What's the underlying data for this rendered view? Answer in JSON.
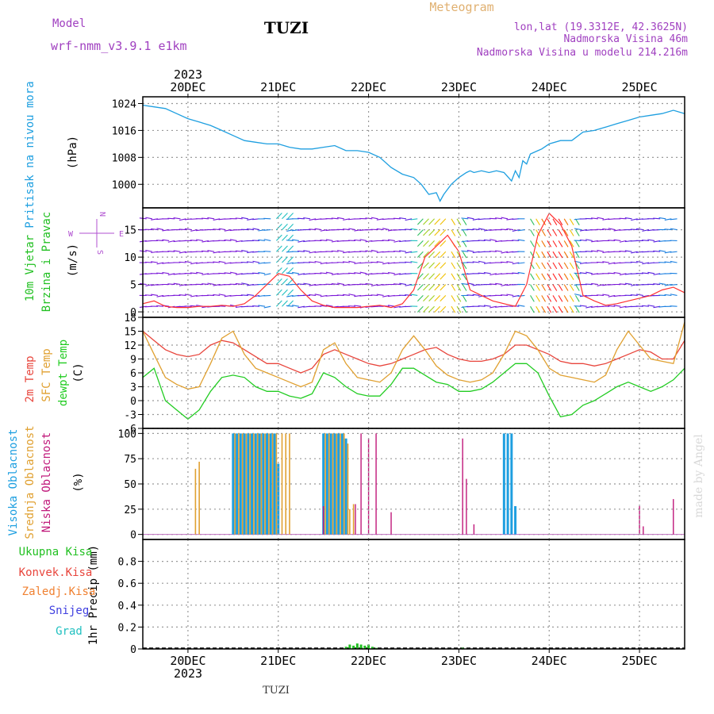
{
  "header": {
    "model_label": "Model",
    "model_name": "wrf-nmm_v3.9.1 e1km",
    "station": "TUZI",
    "product": "Meteogram",
    "lonlat": "lon,lat (19.3312E, 42.3625N)",
    "elevation": "Nadmorska Visina 46m",
    "model_elevation": "Nadmorska Visina u modelu 214.216m",
    "year_top": "2023",
    "year_bottom": "2023",
    "footer_station": "TUZI",
    "watermark": "made by Angel"
  },
  "colors": {
    "pressure": "#1e9fe0",
    "wind_label": "#22c022",
    "wind_speed": "#ff3030",
    "temp2m": "#e8453c",
    "sfc": "#e0a030",
    "dewpt": "#22cc22",
    "high_cloud": "#1e9fe0",
    "mid_cloud": "#e0a030",
    "low_cloud": "#c0187a",
    "total_precip": "#22c022",
    "conv_precip": "#e8453c",
    "frozen_precip": "#f08030",
    "snow": "#4040e0",
    "graupel": "#20c0c0",
    "compass": "#b050d0",
    "header_purple": "#a040c0",
    "meteogram_title": "#e0b070"
  },
  "x_axis": {
    "days": [
      "20DEC",
      "21DEC",
      "22DEC",
      "23DEC",
      "24DEC",
      "25DEC"
    ],
    "range_hours": [
      -12,
      132
    ]
  },
  "chart_data": [
    {
      "type": "line",
      "panel": "pressure",
      "ylabel_lines": [
        "Pritisak na nivou mora",
        "(hPa)"
      ],
      "yticks": [
        1000,
        1008,
        1016,
        1024
      ],
      "ylim": [
        993,
        1026
      ],
      "series": [
        {
          "x": [
            -12,
            -9,
            -6,
            -3,
            0,
            3,
            6,
            9,
            12,
            15,
            18,
            21,
            24,
            27,
            30,
            33,
            36,
            39,
            42,
            45,
            48,
            51,
            54,
            57,
            60,
            62,
            64,
            66,
            67,
            68,
            70,
            72,
            74,
            75,
            76,
            78,
            80,
            82,
            84,
            86,
            87,
            88,
            89,
            90,
            91,
            92,
            93,
            94,
            96,
            99,
            102,
            105,
            108,
            111,
            114,
            117,
            120,
            123,
            126,
            129,
            132
          ],
          "y": [
            1023.5,
            1023,
            1022.5,
            1021,
            1019.5,
            1018.5,
            1017.5,
            1016,
            1014.5,
            1013,
            1012.5,
            1012,
            1012,
            1011,
            1010.5,
            1010.5,
            1011,
            1011.5,
            1010,
            1010,
            1009.5,
            1008,
            1005,
            1003,
            1002,
            1000,
            997,
            997.5,
            995,
            997,
            1000,
            1002,
            1003.5,
            1004,
            1003.5,
            1004,
            1003.5,
            1004,
            1003.5,
            1001,
            1004,
            1002,
            1007,
            1006,
            1009,
            1009.5,
            1010,
            1010.5,
            1012,
            1013,
            1013,
            1015.5,
            1016,
            1017,
            1018,
            1019,
            1020,
            1020.5,
            1021,
            1022,
            1021
          ]
        }
      ]
    },
    {
      "type": "line",
      "panel": "wind",
      "ylabel_lines": [
        "10m Vjetar",
        "Brzina i Pravac",
        "(m/s)"
      ],
      "yticks": [
        0,
        5,
        10,
        15
      ],
      "ylim": [
        -1,
        19
      ],
      "compass": {
        "n": "N",
        "s": "S",
        "w": "W",
        "e": "E"
      },
      "series": [
        {
          "name": "speed",
          "x": [
            -12,
            -9,
            -6,
            -3,
            0,
            3,
            6,
            9,
            12,
            15,
            18,
            21,
            24,
            27,
            30,
            33,
            36,
            39,
            42,
            45,
            48,
            51,
            54,
            57,
            60,
            63,
            66,
            69,
            72,
            75,
            78,
            81,
            84,
            87,
            90,
            93,
            96,
            99,
            102,
            105,
            108,
            111,
            114,
            117,
            120,
            123,
            126,
            129,
            132
          ],
          "y": [
            1.5,
            2,
            1,
            0.8,
            0.8,
            1,
            1,
            1.2,
            1,
            1.5,
            3,
            5,
            7,
            6.5,
            4,
            2,
            1.2,
            0.8,
            0.8,
            0.8,
            1,
            1.2,
            0.8,
            1.5,
            4,
            10,
            12,
            14,
            11,
            4,
            3,
            2,
            1.5,
            1,
            5,
            14,
            18,
            16,
            12,
            3,
            2,
            1.2,
            1.5,
            2,
            2.5,
            3,
            4,
            4.5,
            3.5
          ]
        }
      ]
    },
    {
      "type": "line",
      "panel": "temperature",
      "ylabel_lines": [
        "2m Temp",
        "SFC Temp",
        "dewpt Temp",
        "(C)"
      ],
      "yticks": [
        -6,
        -3,
        0,
        3,
        6,
        9,
        12,
        15,
        18
      ],
      "ylim": [
        -6,
        18
      ],
      "series": [
        {
          "name": "2m Temp",
          "x": [
            -12,
            -9,
            -6,
            -3,
            0,
            3,
            6,
            9,
            12,
            15,
            18,
            21,
            24,
            27,
            30,
            33,
            36,
            39,
            42,
            45,
            48,
            51,
            54,
            57,
            60,
            63,
            66,
            69,
            72,
            75,
            78,
            81,
            84,
            87,
            90,
            93,
            96,
            99,
            102,
            105,
            108,
            111,
            114,
            117,
            120,
            123,
            126,
            129,
            132
          ],
          "y": [
            15,
            13,
            11,
            10,
            9.5,
            10,
            12,
            13,
            12.5,
            11,
            9.5,
            8,
            8,
            7,
            6,
            7,
            10,
            11,
            10,
            9,
            8,
            7.5,
            8,
            9,
            10,
            11,
            11.5,
            10,
            9,
            8.5,
            8.5,
            9,
            10,
            12,
            12,
            11,
            10,
            8.5,
            8,
            8,
            7.5,
            8,
            9,
            10,
            11,
            10.5,
            9,
            9,
            13
          ]
        },
        {
          "name": "SFC Temp",
          "x": [
            -12,
            -9,
            -6,
            -3,
            0,
            3,
            6,
            9,
            12,
            15,
            18,
            21,
            24,
            27,
            30,
            33,
            36,
            39,
            42,
            45,
            48,
            51,
            54,
            57,
            60,
            63,
            66,
            69,
            72,
            75,
            78,
            81,
            84,
            87,
            90,
            93,
            96,
            99,
            102,
            105,
            108,
            111,
            114,
            117,
            120,
            123,
            126,
            129,
            132
          ],
          "y": [
            15,
            10,
            5,
            3.5,
            2.5,
            3,
            8,
            13.5,
            15,
            10,
            7,
            6,
            5,
            4,
            3,
            4,
            11,
            12.5,
            8,
            5,
            4.5,
            4,
            6,
            11,
            14,
            11,
            7.5,
            5.5,
            4.5,
            4,
            4.5,
            6,
            10,
            15,
            14,
            11,
            7,
            5.5,
            5,
            4.5,
            4,
            5.5,
            11,
            15,
            12,
            9,
            8.5,
            8,
            17
          ]
        },
        {
          "name": "dewpt Temp",
          "x": [
            -12,
            -9,
            -6,
            -3,
            0,
            3,
            6,
            9,
            12,
            15,
            18,
            21,
            24,
            27,
            30,
            33,
            36,
            39,
            42,
            45,
            48,
            51,
            54,
            57,
            60,
            63,
            66,
            69,
            72,
            75,
            78,
            81,
            84,
            87,
            90,
            93,
            96,
            99,
            102,
            105,
            108,
            111,
            114,
            117,
            120,
            123,
            126,
            129,
            132
          ],
          "y": [
            5,
            7,
            0,
            -2,
            -4,
            -2,
            2,
            5,
            5.5,
            5,
            3,
            2,
            2,
            1,
            0.5,
            1.5,
            6,
            5,
            3,
            1.5,
            1,
            1,
            3.5,
            7,
            7,
            5.5,
            4,
            3.5,
            2,
            2,
            2.5,
            4,
            6,
            8,
            8,
            6,
            1,
            -3.5,
            -3,
            -1,
            0,
            1.5,
            3,
            4,
            3,
            2,
            3,
            4.5,
            7
          ]
        }
      ]
    },
    {
      "type": "bar",
      "panel": "clouds",
      "ylabel_lines": [
        "Visoka Oblacnost",
        "Srednja Oblacnost",
        "Niska Oblacnost",
        "(%)"
      ],
      "yticks": [
        0,
        25,
        50,
        75,
        100
      ],
      "ylim": [
        -5,
        105
      ],
      "series": [
        {
          "name": "Visoka Oblacnost",
          "x": [
            12,
            13,
            14,
            15,
            16,
            17,
            18,
            19,
            20,
            21,
            22,
            23,
            24,
            36,
            37,
            38,
            39,
            40,
            41,
            42,
            84,
            85,
            86,
            87
          ],
          "values": [
            100,
            100,
            100,
            100,
            100,
            100,
            100,
            100,
            100,
            100,
            100,
            100,
            70,
            100,
            100,
            100,
            100,
            100,
            100,
            95,
            100,
            100,
            100,
            28
          ]
        },
        {
          "name": "Srednja Oblacnost",
          "x": [
            2,
            3,
            12.5,
            13.5,
            14.5,
            15.5,
            16.5,
            17.5,
            18.5,
            19.5,
            20.5,
            21.5,
            22.5,
            23.5,
            25,
            26,
            27,
            36.5,
            37.5,
            38.5,
            39.5,
            40.5,
            41.5,
            42.5,
            43,
            44
          ],
          "values": [
            65,
            72,
            100,
            100,
            100,
            100,
            100,
            100,
            100,
            100,
            100,
            100,
            100,
            100,
            100,
            100,
            100,
            100,
            100,
            100,
            100,
            100,
            100,
            90,
            25,
            30
          ]
        },
        {
          "name": "Niska Oblacnost",
          "x": [
            36,
            44.5,
            46,
            48,
            50,
            54,
            73,
            74,
            76,
            120,
            121,
            129
          ],
          "values": [
            28,
            30,
            100,
            95,
            100,
            22,
            95,
            55,
            10,
            28,
            8,
            35
          ]
        }
      ]
    },
    {
      "type": "bar",
      "panel": "precipitation",
      "ylabel_lines": [
        "1hr Precip (mm)"
      ],
      "legend": [
        "Ukupna Kisa",
        "Konvek.Kisa",
        "Zaledj.Kisa",
        "Snijeg",
        "Grad"
      ],
      "yticks": [
        0,
        0.2,
        0.4,
        0.6,
        0.8
      ],
      "ylim": [
        0,
        1
      ],
      "series": [
        {
          "name": "Ukupna Kisa",
          "x": [
            42,
            43,
            44,
            45,
            46,
            47,
            48,
            49,
            50,
            73
          ],
          "values": [
            0.02,
            0.04,
            0.03,
            0.05,
            0.04,
            0.03,
            0.04,
            0.02,
            0.01,
            0.01
          ]
        }
      ]
    }
  ]
}
